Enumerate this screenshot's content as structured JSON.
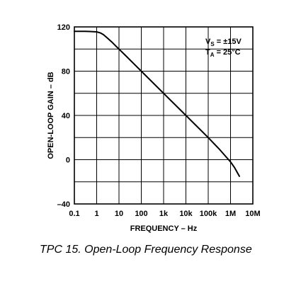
{
  "caption": "TPC 15. Open-Loop Frequency Response",
  "chart_data": {
    "type": "line",
    "xlabel": "FREQUENCY – Hz",
    "ylabel": "OPEN-LOOP GAIN – dB",
    "xscale": "log",
    "xlim": [
      0.1,
      10000000
    ],
    "ylim": [
      -40,
      120
    ],
    "grid": true,
    "x_ticks": [
      0.1,
      1,
      10,
      100,
      1000,
      10000,
      100000,
      1000000,
      10000000
    ],
    "x_tick_labels": [
      "0.1",
      "1",
      "10",
      "100",
      "1k",
      "10k",
      "100k",
      "1M",
      "10M"
    ],
    "y_ticks": [
      -40,
      0,
      40,
      80,
      120
    ],
    "y_tick_labels": [
      "–40",
      "0",
      "40",
      "80",
      "120"
    ],
    "annotations": [
      {
        "main": "V",
        "sub": "S",
        "rest": " = ±15V"
      },
      {
        "main": "T",
        "sub": "A",
        "rest": " = 25°C"
      }
    ],
    "series": [
      {
        "x": [
          0.1,
          0.3,
          0.6,
          1,
          1.5,
          2,
          3,
          5,
          7,
          10,
          20,
          50,
          100,
          1000,
          10000,
          100000,
          300000,
          1000000,
          1500000,
          2500000
        ],
        "y": [
          116,
          116,
          115.8,
          115.5,
          114.5,
          113,
          110,
          106,
          103,
          100,
          94,
          86,
          80,
          60,
          40,
          20,
          10,
          -2,
          -7,
          -15
        ]
      }
    ]
  }
}
